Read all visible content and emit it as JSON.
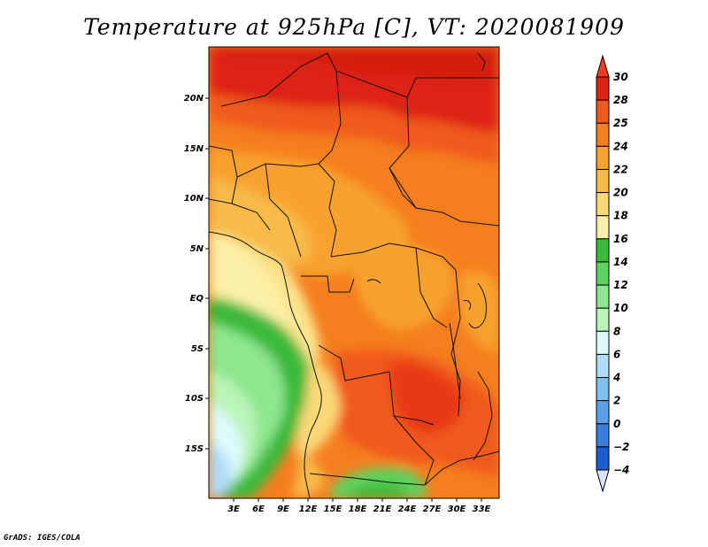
{
  "title": "Temperature at 925hPa [C], VT: 2020081909",
  "credit": "GrADS: IGES/COLA",
  "map": {
    "lat_labels": [
      "20N",
      "15N",
      "10N",
      "5N",
      "EQ",
      "5S",
      "10S",
      "15S"
    ],
    "lon_labels": [
      "3E",
      "6E",
      "9E",
      "12E",
      "15E",
      "18E",
      "21E",
      "24E",
      "27E",
      "30E",
      "33E"
    ]
  },
  "colorbar": {
    "labels": [
      "30",
      "28",
      "25",
      "24",
      "22",
      "20",
      "18",
      "16",
      "14",
      "12",
      "10",
      "8",
      "6",
      "4",
      "2",
      "0",
      "-2",
      "-4"
    ],
    "colors": [
      "#f03c1e",
      "#dd2212",
      "#f05a1e",
      "#f57e1e",
      "#f7a22e",
      "#f7bb48",
      "#fbd878",
      "#fbf0a8",
      "#3ab93a",
      "#5ed25e",
      "#8ee68e",
      "#baf4ba",
      "#dcfafa",
      "#b0dcf8",
      "#80c0f0",
      "#5aa0e8",
      "#3a7ee0",
      "#1c5ed2",
      "#0c3cb4",
      "#06188a"
    ]
  }
}
